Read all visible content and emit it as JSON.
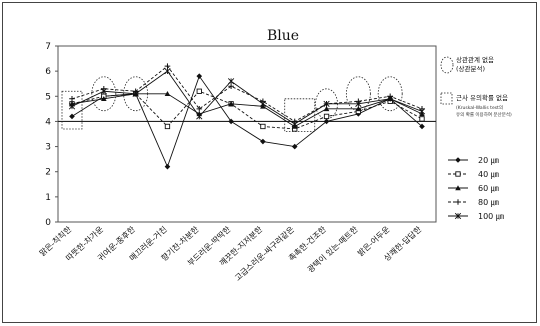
{
  "chart_data": {
    "type": "line",
    "title": "Blue",
    "xlabel": "",
    "ylabel": "",
    "ylim": [
      0,
      7
    ],
    "yticks": [
      0,
      1,
      2,
      3,
      4,
      5,
      6,
      7
    ],
    "reference_line": 4,
    "legend_position": "right",
    "categories": [
      "맑은-칙칙한",
      "따뜻한-차가운",
      "귀여운-중후한",
      "매끄러운-거친",
      "향기찬-차분한",
      "부드러운-딱딱한",
      "깨끗한-지저분한",
      "고급스러운-싸구려같은",
      "촉촉한-건조한",
      "광택이 있는-매트한",
      "밝은-어두운",
      "상쾌한-답답한"
    ],
    "series": [
      {
        "name": "20 ㎛",
        "marker": "diamond",
        "line": "solid",
        "values": [
          4.2,
          5.0,
          5.1,
          2.2,
          5.8,
          4.0,
          3.2,
          3.0,
          4.0,
          4.3,
          4.9,
          3.8
        ]
      },
      {
        "name": "40 ㎛",
        "marker": "square",
        "line": "dashed",
        "values": [
          4.7,
          5.0,
          5.1,
          3.8,
          5.2,
          4.7,
          3.8,
          3.7,
          4.2,
          4.4,
          4.8,
          4.1
        ]
      },
      {
        "name": "60 ㎛",
        "marker": "triangle",
        "line": "solid",
        "values": [
          4.7,
          4.9,
          5.1,
          5.1,
          4.3,
          4.7,
          4.6,
          3.8,
          4.5,
          4.5,
          4.9,
          4.3
        ]
      },
      {
        "name": "80 ㎛",
        "marker": "plus",
        "line": "dashed",
        "values": [
          4.9,
          5.3,
          5.2,
          6.2,
          4.5,
          5.4,
          4.8,
          4.0,
          4.7,
          4.8,
          5.0,
          4.5
        ]
      },
      {
        "name": "100 ㎛",
        "marker": "star",
        "line": "solid",
        "values": [
          4.6,
          5.2,
          5.1,
          6.0,
          4.2,
          5.6,
          4.7,
          3.9,
          4.7,
          4.7,
          4.9,
          4.4
        ]
      }
    ],
    "annotations": {
      "circle_label": "상관관계 없음",
      "circle_sub": "(상관분석)",
      "box_label": "근사 유의확률 없음",
      "box_sub1": "(Kruskal-Wallis test의",
      "box_sub2": "유의 확률 이용하여 분산분석)"
    },
    "colors": {
      "line": "#111111",
      "frame": "#444444"
    }
  }
}
